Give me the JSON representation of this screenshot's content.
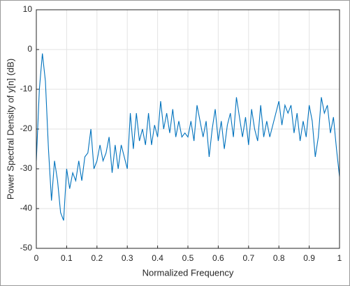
{
  "chart_data": {
    "type": "line",
    "xlabel": "Normalized Frequency",
    "ylabel": "Power Spectral Density of y[n] (dB)",
    "x": [
      0,
      0.01,
      0.02,
      0.03,
      0.04,
      0.05,
      0.06,
      0.07,
      0.08,
      0.09,
      0.1,
      0.11,
      0.12,
      0.13,
      0.14,
      0.15,
      0.16,
      0.17,
      0.18,
      0.19,
      0.2,
      0.21,
      0.22,
      0.23,
      0.24,
      0.25,
      0.26,
      0.27,
      0.28,
      0.29,
      0.3,
      0.31,
      0.32,
      0.33,
      0.34,
      0.35,
      0.36,
      0.37,
      0.38,
      0.39,
      0.4,
      0.41,
      0.42,
      0.43,
      0.44,
      0.45,
      0.46,
      0.47,
      0.48,
      0.49,
      0.5,
      0.51,
      0.52,
      0.53,
      0.54,
      0.55,
      0.56,
      0.57,
      0.58,
      0.59,
      0.6,
      0.61,
      0.62,
      0.63,
      0.64,
      0.65,
      0.66,
      0.67,
      0.68,
      0.69,
      0.7,
      0.71,
      0.72,
      0.73,
      0.74,
      0.75,
      0.76,
      0.77,
      0.78,
      0.79,
      0.8,
      0.81,
      0.82,
      0.83,
      0.84,
      0.85,
      0.86,
      0.87,
      0.88,
      0.89,
      0.9,
      0.91,
      0.92,
      0.93,
      0.94,
      0.95,
      0.96,
      0.97,
      0.98,
      0.99,
      1
    ],
    "series": [
      {
        "color": "#0072bd",
        "values": [
          -28,
          -10,
          -1,
          -8,
          -25,
          -38,
          -28,
          -33,
          -41,
          -43,
          -30,
          -35,
          -31,
          -33,
          -28,
          -33,
          -27,
          -26,
          -20,
          -30,
          -28,
          -24,
          -28,
          -26,
          -22,
          -31,
          -24,
          -30,
          -24,
          -27,
          -30,
          -16,
          -25,
          -16,
          -23,
          -20,
          -24,
          -16,
          -24,
          -19,
          -22,
          -13,
          -20,
          -16,
          -21,
          -15,
          -22,
          -18,
          -22,
          -21,
          -22,
          -18,
          -23,
          -14,
          -18,
          -22,
          -18,
          -27,
          -20,
          -15,
          -23,
          -18,
          -25,
          -19,
          -16,
          -22,
          -12,
          -17,
          -22,
          -17,
          -24,
          -15,
          -20,
          -23,
          -14,
          -22,
          -18,
          -22,
          -19,
          -16,
          -13,
          -19,
          -14,
          -16,
          -14,
          -21,
          -16,
          -23,
          -18,
          -22,
          -14,
          -18,
          -27,
          -22,
          -12,
          -16,
          -14,
          -21,
          -17,
          -25,
          -32
        ]
      }
    ],
    "xlim": [
      0,
      1
    ],
    "xticks": [
      0,
      0.1,
      0.2,
      0.3,
      0.4,
      0.5,
      0.6,
      0.7,
      0.8,
      0.9,
      1
    ],
    "ylim": [
      -50,
      10
    ],
    "yticks": [
      -50,
      -40,
      -30,
      -20,
      -10,
      0,
      10
    ],
    "grid": true
  }
}
